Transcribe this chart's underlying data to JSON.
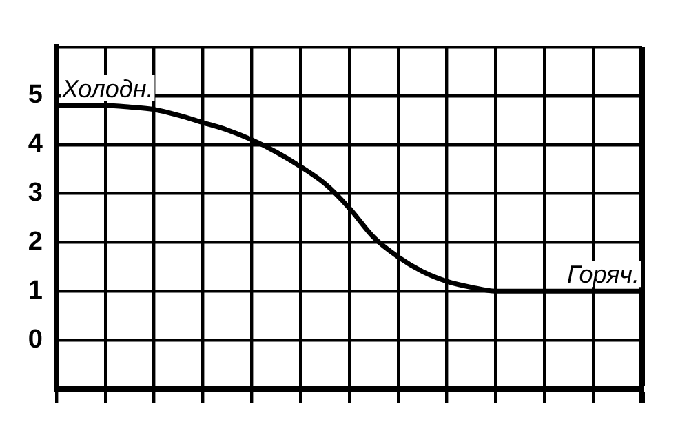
{
  "chart_data": {
    "type": "line",
    "categories": [
      null,
      null,
      null,
      null,
      null,
      null,
      null,
      null,
      null,
      null,
      null,
      null,
      null,
      null,
      null,
      null,
      null,
      null,
      null,
      null,
      null,
      null,
      null,
      null,
      null
    ],
    "series": [
      {
        "color": "#000000",
        "values": [
          4.8,
          4.8,
          4.8,
          4.77,
          4.72,
          4.6,
          4.45,
          4.3,
          4.1,
          3.85,
          3.55,
          3.2,
          2.7,
          2.1,
          1.7,
          1.4,
          1.2,
          1.08,
          1,
          1,
          1,
          1,
          1,
          1,
          1
        ]
      }
    ],
    "ylim": [
      -1,
      6
    ],
    "yticks": [
      {
        "value": -1,
        "label": null
      },
      0,
      1,
      2,
      3,
      4,
      5,
      {
        "value": 6,
        "label": null
      }
    ],
    "grid": true,
    "legend": false,
    "marker": "none",
    "line_style": "solid",
    "annotations": [
      "Холодн.",
      "Горяч."
    ]
  }
}
